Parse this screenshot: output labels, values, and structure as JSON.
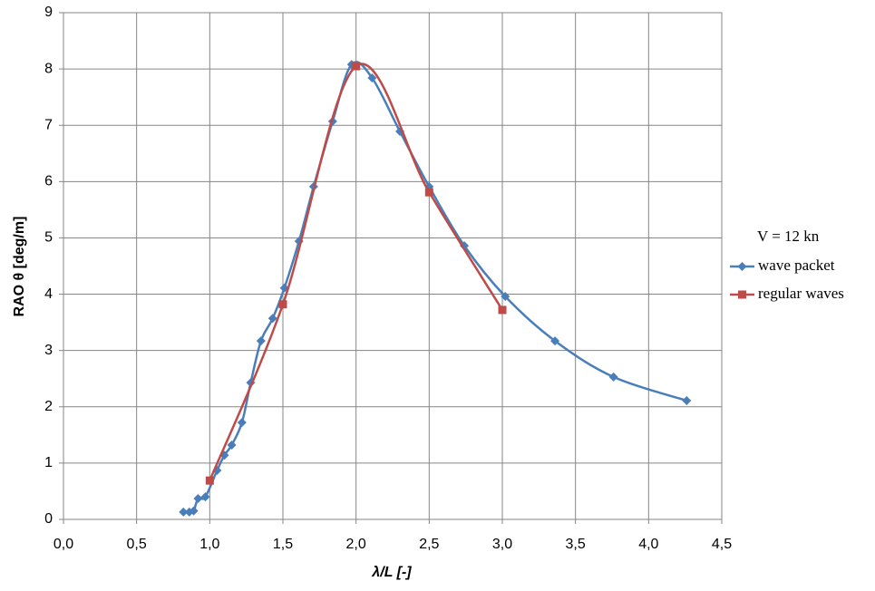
{
  "chart_data": {
    "type": "line",
    "x_label": "λ/L [-]",
    "y_label": "RAO θ [deg/m]",
    "legend_title": "V = 12 kn",
    "legend": "right",
    "grid": true,
    "xlim": [
      0,
      4.5
    ],
    "ylim": [
      0,
      9
    ],
    "xticks": [
      {
        "value": 0,
        "label": "0,0"
      },
      {
        "value": 0.5,
        "label": "0,5"
      },
      {
        "value": 1,
        "label": "1,0"
      },
      {
        "value": 1.5,
        "label": "1,5"
      },
      {
        "value": 2,
        "label": "2,0"
      },
      {
        "value": 2.5,
        "label": "2,5"
      },
      {
        "value": 3,
        "label": "3,0"
      },
      {
        "value": 3.5,
        "label": "3,5"
      },
      {
        "value": 4,
        "label": "4,0"
      },
      {
        "value": 4.5,
        "label": "4,5"
      }
    ],
    "yticks": [
      0,
      1,
      2,
      3,
      4,
      5,
      6,
      7,
      8,
      9
    ],
    "series": [
      {
        "name": "wave packet",
        "color": "#4a7ebb",
        "marker": "diamond",
        "x": [
          0.82,
          0.86,
          0.89,
          0.92,
          0.97,
          1.05,
          1.1,
          1.15,
          1.22,
          1.28,
          1.35,
          1.43,
          1.51,
          1.61,
          1.71,
          1.84,
          1.97,
          2.11,
          2.3,
          2.5,
          2.74,
          3.02,
          3.36,
          3.76,
          4.26
        ],
        "values": [
          0.13,
          0.13,
          0.15,
          0.37,
          0.4,
          0.87,
          1.14,
          1.32,
          1.72,
          2.43,
          3.17,
          3.57,
          4.11,
          4.94,
          5.91,
          7.07,
          8.08,
          7.84,
          6.89,
          5.91,
          4.86,
          3.96,
          3.17,
          2.53,
          2.11
        ]
      },
      {
        "name": "regular waves",
        "color": "#be4b48",
        "marker": "square",
        "x": [
          1.0,
          1.5,
          2.0,
          2.5,
          3.0
        ],
        "values": [
          0.69,
          3.82,
          8.05,
          5.81,
          3.72
        ]
      }
    ]
  }
}
